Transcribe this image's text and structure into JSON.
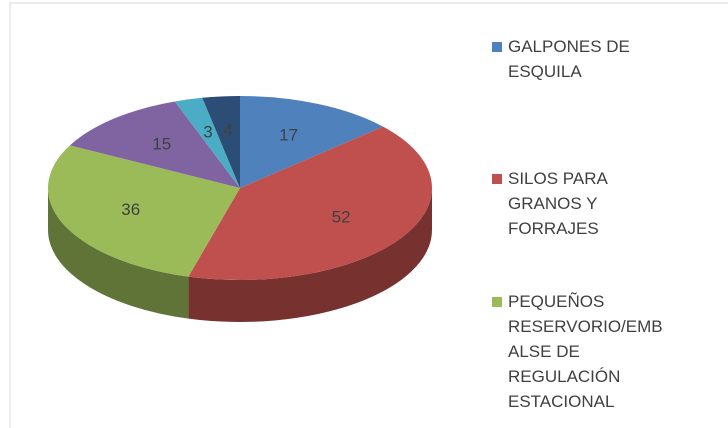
{
  "chart_data": {
    "type": "pie",
    "categories": [
      "GALPONES DE ESQUILA",
      "SILOS PARA GRANOS Y FORRAJES",
      "PEQUEÑOS RESERVORIO/EMBALSE DE REGULACIÓN ESTACIONAL",
      null,
      null,
      null
    ],
    "values": [
      17,
      52,
      36,
      15,
      3,
      4
    ],
    "colors": [
      "#4f81bd",
      "#c0504d",
      "#9bbb59",
      "#8064a2",
      "#4bacc6",
      "#2c4d75"
    ],
    "legend": "right"
  }
}
